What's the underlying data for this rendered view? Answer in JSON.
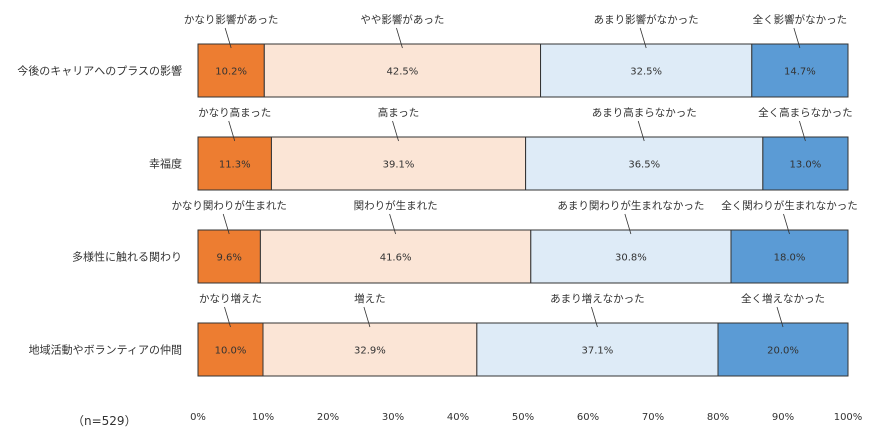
{
  "colors": {
    "greatly": "#ED7D31",
    "somewhat": "#FBE5D6",
    "not_much": "#DEEBF7",
    "not_at_all": "#5B9BD5",
    "border": "#333333",
    "leader": "#333333"
  },
  "chart_data": {
    "type": "bar",
    "orientation": "horizontal-stacked-100",
    "note": "（n=529）",
    "xlim": [
      0,
      100
    ],
    "xticks": [
      "0%",
      "10%",
      "20%",
      "30%",
      "40%",
      "50%",
      "60%",
      "70%",
      "80%",
      "90%",
      "100%"
    ],
    "categories": [
      {
        "label": "今後のキャリアへのプラスの影響",
        "segments": [
          {
            "name": "かなり影響があった",
            "value": 10.2,
            "display": "10.2%",
            "color_key": "greatly"
          },
          {
            "name": "やや影響があった",
            "value": 42.5,
            "display": "42.5%",
            "color_key": "somewhat"
          },
          {
            "name": "あまり影響がなかった",
            "value": 32.5,
            "display": "32.5%",
            "color_key": "not_much"
          },
          {
            "name": "全く影響がなかった",
            "value": 14.7,
            "display": "14.7%",
            "color_key": "not_at_all"
          }
        ]
      },
      {
        "label": "幸福度",
        "segments": [
          {
            "name": "かなり高まった",
            "value": 11.3,
            "display": "11.3%",
            "color_key": "greatly"
          },
          {
            "name": "高まった",
            "value": 39.1,
            "display": "39.1%",
            "color_key": "somewhat"
          },
          {
            "name": "あまり高まらなかった",
            "value": 36.5,
            "display": "36.5%",
            "color_key": "not_much"
          },
          {
            "name": "全く高まらなかった",
            "value": 13.0,
            "display": "13.0%",
            "color_key": "not_at_all"
          }
        ]
      },
      {
        "label": "多様性に触れる関わり",
        "segments": [
          {
            "name": "かなり関わりが生まれた",
            "value": 9.6,
            "display": "9.6%",
            "color_key": "greatly"
          },
          {
            "name": "関わりが生まれた",
            "value": 41.6,
            "display": "41.6%",
            "color_key": "somewhat"
          },
          {
            "name": "あまり関わりが生まれなかった",
            "value": 30.8,
            "display": "30.8%",
            "color_key": "not_much"
          },
          {
            "name": "全く関わりが生まれなかった",
            "value": 18.0,
            "display": "18.0%",
            "color_key": "not_at_all"
          }
        ]
      },
      {
        "label": "地域活動やボランティアの仲間",
        "segments": [
          {
            "name": "かなり増えた",
            "value": 10.0,
            "display": "10.0%",
            "color_key": "greatly"
          },
          {
            "name": "増えた",
            "value": 32.9,
            "display": "32.9%",
            "color_key": "somewhat"
          },
          {
            "name": "あまり増えなかった",
            "value": 37.1,
            "display": "37.1%",
            "color_key": "not_much"
          },
          {
            "name": "全く増えなかった",
            "value": 20.0,
            "display": "20.0%",
            "color_key": "not_at_all"
          }
        ]
      }
    ]
  }
}
